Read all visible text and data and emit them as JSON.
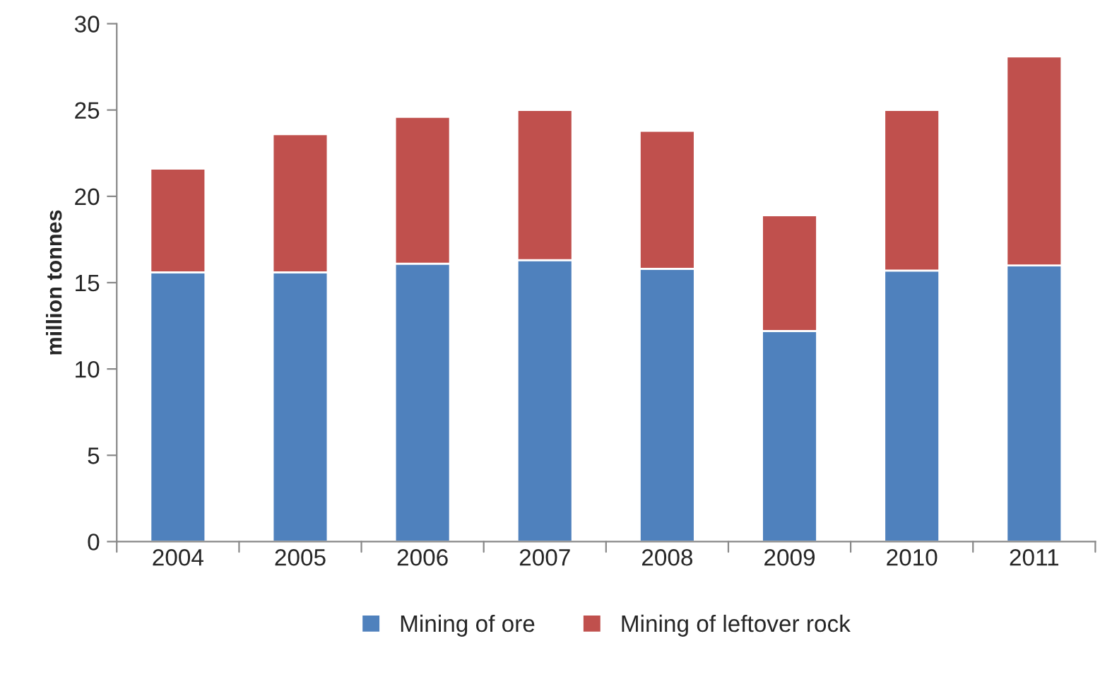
{
  "chart_data": {
    "type": "bar",
    "stacked": true,
    "ylabel": "million tonnes",
    "categories": [
      "2004",
      "2005",
      "2006",
      "2007",
      "2008",
      "2009",
      "2010",
      "2011"
    ],
    "series": [
      {
        "name": "Mining of ore",
        "color": "#4f81bd",
        "values": [
          15.6,
          15.6,
          16.1,
          16.3,
          15.8,
          12.2,
          15.7,
          16.0
        ]
      },
      {
        "name": "Mining of leftover rock",
        "color": "#c0504d",
        "values": [
          6.0,
          8.0,
          8.5,
          8.7,
          8.0,
          6.7,
          9.3,
          12.1
        ]
      }
    ],
    "ylim": [
      0,
      30
    ],
    "yticks": [
      0,
      5,
      10,
      15,
      20,
      25,
      30
    ],
    "grid": false,
    "legend": "bottom"
  }
}
